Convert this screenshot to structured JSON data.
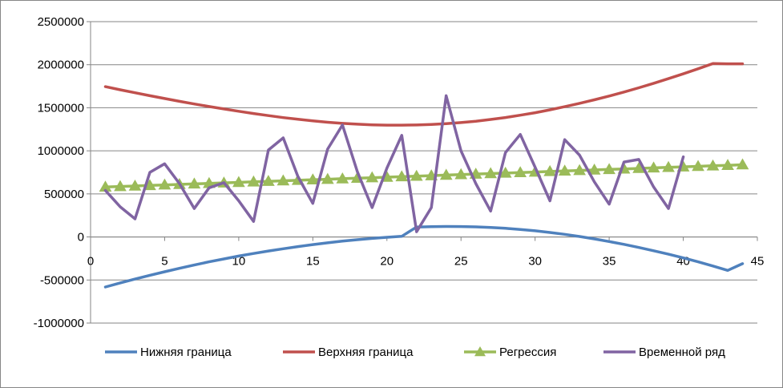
{
  "chart_data": {
    "type": "line",
    "title": "",
    "xlabel": "",
    "ylabel": "",
    "xlim": [
      0,
      45
    ],
    "ylim": [
      -1000000,
      2500000
    ],
    "x_ticks": [
      0,
      5,
      10,
      15,
      20,
      25,
      30,
      35,
      40,
      45
    ],
    "y_ticks": [
      -1000000,
      -500000,
      0,
      500000,
      1000000,
      1500000,
      2000000,
      2500000
    ],
    "x_tick_labels": [
      "0",
      "5",
      "10",
      "15",
      "20",
      "25",
      "30",
      "35",
      "40",
      "45"
    ],
    "y_tick_labels": [
      "-1000000",
      "-500000",
      "0",
      "500000",
      "1000000",
      "1500000",
      "2000000",
      "2500000"
    ],
    "grid": "horizontal",
    "legend_position": "bottom",
    "series": [
      {
        "name": "Нижняя граница",
        "color": "#4F81BD",
        "marker": "none",
        "x": [
          1,
          2,
          3,
          4,
          5,
          6,
          7,
          8,
          9,
          10,
          11,
          12,
          13,
          14,
          15,
          16,
          17,
          18,
          19,
          20,
          21,
          22,
          23,
          24,
          25,
          26,
          27,
          28,
          29,
          30,
          31,
          32,
          33,
          34,
          35,
          36,
          37,
          38,
          39,
          40,
          41,
          42,
          43,
          44
        ],
        "values": [
          -581000,
          -534000,
          -489000,
          -445000,
          -404000,
          -364000,
          -326000,
          -289000,
          -255000,
          -222000,
          -192000,
          -163000,
          -137000,
          -112000,
          -89000,
          -68000,
          -49000,
          -32000,
          -17000,
          -4000,
          7000,
          115000,
          120000,
          122000,
          121000,
          117000,
          110000,
          100000,
          87000,
          71000,
          52000,
          30000,
          5000,
          -23000,
          -53000,
          -86000,
          -122000,
          -160000,
          -200000,
          -243000,
          -289000,
          -337000,
          -388000,
          -310000
        ]
      },
      {
        "name": "Верхняя граница",
        "color": "#C0504D",
        "marker": "none",
        "x": [
          1,
          2,
          3,
          4,
          5,
          6,
          7,
          8,
          9,
          10,
          11,
          12,
          13,
          14,
          15,
          16,
          17,
          18,
          19,
          20,
          21,
          22,
          23,
          24,
          25,
          26,
          27,
          28,
          29,
          30,
          31,
          32,
          33,
          34,
          35,
          36,
          37,
          38,
          39,
          40,
          41,
          42,
          43,
          44
        ],
        "values": [
          1745000,
          1709000,
          1674000,
          1640000,
          1607000,
          1575000,
          1544000,
          1514000,
          1486000,
          1459000,
          1433000,
          1409000,
          1386000,
          1366000,
          1348000,
          1332000,
          1319000,
          1309000,
          1302000,
          1298000,
          1298000,
          1300000,
          1306000,
          1315000,
          1328000,
          1344000,
          1364000,
          1387000,
          1414000,
          1443000,
          1476000,
          1512000,
          1551000,
          1592000,
          1636000,
          1683000,
          1732000,
          1784000,
          1838000,
          1894000,
          1953000,
          2013000,
          2010000,
          2010000
        ]
      },
      {
        "name": "Регрессия",
        "color": "#9BBB59",
        "marker": "triangle",
        "x": [
          1,
          2,
          3,
          4,
          5,
          6,
          7,
          8,
          9,
          10,
          11,
          12,
          13,
          14,
          15,
          16,
          17,
          18,
          19,
          20,
          21,
          22,
          23,
          24,
          25,
          26,
          27,
          28,
          29,
          30,
          31,
          32,
          33,
          34,
          35,
          36,
          37,
          38,
          39,
          40,
          41,
          42,
          43,
          44
        ],
        "values": [
          580000,
          586000,
          592000,
          598000,
          604000,
          610000,
          616000,
          622000,
          628000,
          634000,
          640000,
          646000,
          652000,
          658000,
          664000,
          670000,
          676000,
          682000,
          688000,
          694000,
          700000,
          706000,
          712000,
          718000,
          724000,
          730000,
          736000,
          742000,
          748000,
          754000,
          760000,
          766000,
          772000,
          778000,
          784000,
          790000,
          796000,
          802000,
          808000,
          814000,
          820000,
          826000,
          832000,
          838000
        ]
      },
      {
        "name": "Временной ряд",
        "color": "#8064A2",
        "marker": "none",
        "x": [
          1,
          2,
          3,
          4,
          5,
          6,
          7,
          8,
          9,
          10,
          11,
          12,
          13,
          14,
          15,
          16,
          17,
          18,
          19,
          20,
          21,
          22,
          23,
          24,
          25,
          26,
          27,
          28,
          29,
          30,
          31,
          32,
          33,
          34,
          35,
          36,
          37,
          38,
          39,
          40
        ],
        "values": [
          540000,
          350000,
          210000,
          750000,
          850000,
          620000,
          330000,
          570000,
          630000,
          420000,
          180000,
          1010000,
          1150000,
          700000,
          390000,
          1020000,
          1300000,
          760000,
          340000,
          800000,
          1180000,
          60000,
          340000,
          1640000,
          1000000,
          620000,
          300000,
          980000,
          1190000,
          810000,
          420000,
          1130000,
          950000,
          640000,
          380000,
          870000,
          900000,
          580000,
          330000,
          930000
        ]
      }
    ]
  }
}
